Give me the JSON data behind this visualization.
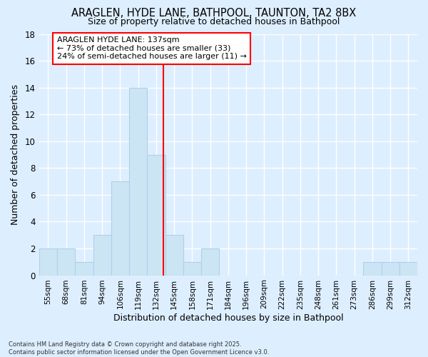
{
  "title": "ARAGLEN, HYDE LANE, BATHPOOL, TAUNTON, TA2 8BX",
  "subtitle": "Size of property relative to detached houses in Bathpool",
  "xlabel": "Distribution of detached houses by size in Bathpool",
  "ylabel": "Number of detached properties",
  "bin_labels": [
    "55sqm",
    "68sqm",
    "81sqm",
    "94sqm",
    "106sqm",
    "119sqm",
    "132sqm",
    "145sqm",
    "158sqm",
    "171sqm",
    "184sqm",
    "196sqm",
    "209sqm",
    "222sqm",
    "235sqm",
    "248sqm",
    "261sqm",
    "273sqm",
    "286sqm",
    "299sqm",
    "312sqm"
  ],
  "bar_values": [
    2,
    2,
    1,
    3,
    7,
    14,
    9,
    3,
    1,
    2,
    0,
    0,
    0,
    0,
    0,
    0,
    0,
    0,
    1,
    1,
    1
  ],
  "bar_color": "#cce5f5",
  "bar_edge_color": "#b0d0e8",
  "marker_line_color": "red",
  "annotation_line1": "ARAGLEN HYDE LANE: 137sqm",
  "annotation_line2": "← 73% of detached houses are smaller (33)",
  "annotation_line3": "24% of semi-detached houses are larger (11) →",
  "annotation_box_color": "white",
  "annotation_box_edge": "red",
  "background_color": "#ddeeff",
  "plot_bg_color": "#ddeeff",
  "grid_color": "white",
  "footer_text": "Contains HM Land Registry data © Crown copyright and database right 2025.\nContains public sector information licensed under the Open Government Licence v3.0.",
  "ylim": [
    0,
    18
  ],
  "yticks": [
    0,
    2,
    4,
    6,
    8,
    10,
    12,
    14,
    16,
    18
  ]
}
